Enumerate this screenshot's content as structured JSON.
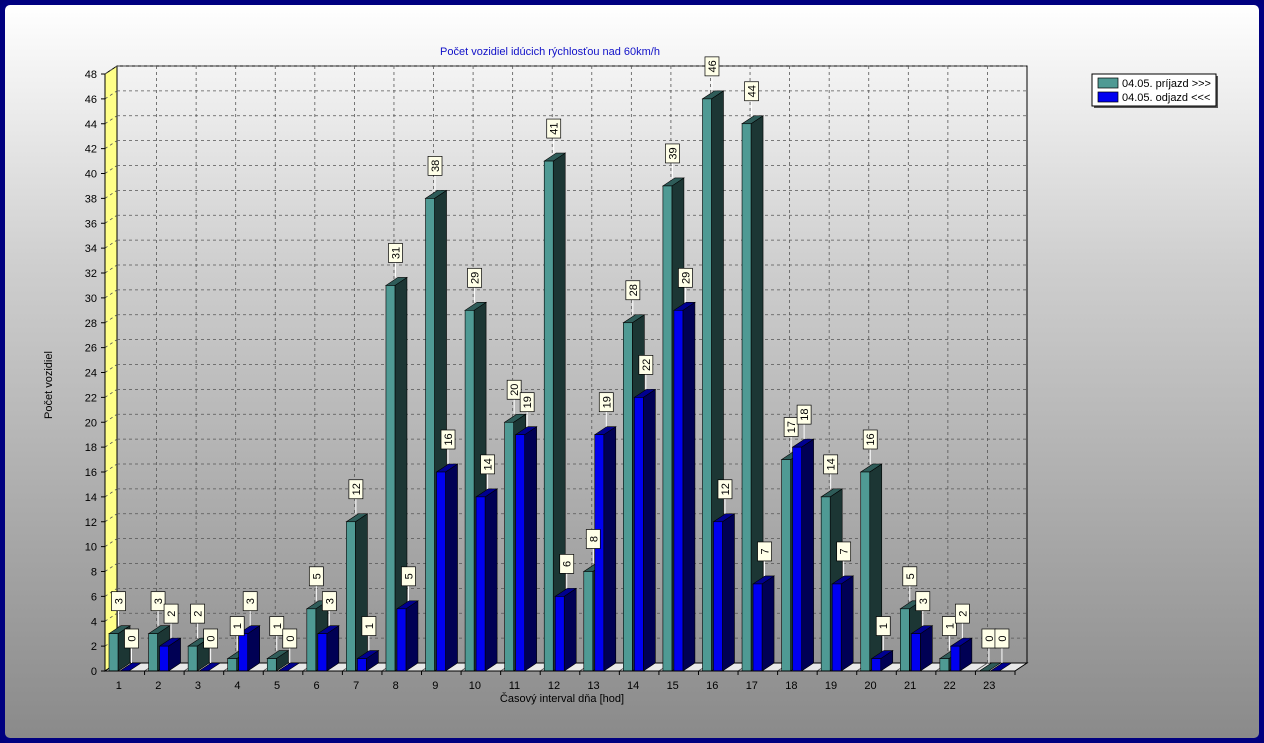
{
  "chart_data": {
    "type": "bar",
    "title": "Počet vozidiel idúcich rýchlosťou nad 60km/h",
    "xlabel": "Časový interval dňa [hod]",
    "ylabel": "Počet vozidiel",
    "categories": [
      "1",
      "2",
      "3",
      "4",
      "5",
      "6",
      "7",
      "8",
      "9",
      "10",
      "11",
      "12",
      "13",
      "14",
      "15",
      "16",
      "17",
      "18",
      "19",
      "20",
      "21",
      "22",
      "23"
    ],
    "ylim": [
      0,
      48
    ],
    "yticks": [
      0,
      2,
      4,
      6,
      8,
      10,
      12,
      14,
      16,
      18,
      20,
      22,
      24,
      26,
      28,
      30,
      32,
      34,
      36,
      38,
      40,
      42,
      44,
      46,
      48
    ],
    "grid": true,
    "legend_position": "top-right",
    "series": [
      {
        "name": "04.05.  príjazd >>>",
        "color": "#4f9a94",
        "values": [
          3,
          3,
          2,
          1,
          1,
          5,
          12,
          31,
          38,
          29,
          20,
          41,
          8,
          28,
          39,
          46,
          44,
          17,
          14,
          16,
          5,
          1,
          0
        ]
      },
      {
        "name": "04.05.  odjazd <<<",
        "color": "#0000f0",
        "values": [
          0,
          2,
          0,
          3,
          0,
          3,
          1,
          5,
          16,
          14,
          19,
          6,
          19,
          22,
          29,
          12,
          7,
          18,
          7,
          1,
          3,
          2,
          0
        ]
      }
    ]
  }
}
